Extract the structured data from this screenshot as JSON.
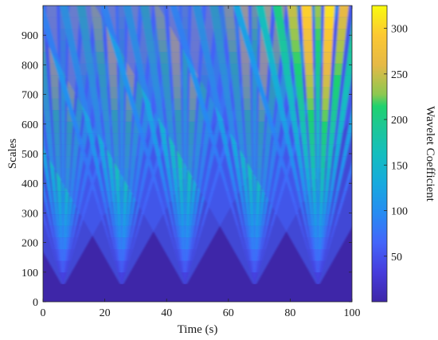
{
  "chart_data": {
    "type": "heatmap",
    "title": "",
    "xlabel": "Time (s)",
    "ylabel": "Scales",
    "colorbar_label": "Wavelet Coefficient",
    "xlim": [
      0,
      100
    ],
    "ylim": [
      0,
      1000
    ],
    "x_ticks": [
      0,
      20,
      40,
      60,
      80,
      100
    ],
    "y_ticks": [
      0,
      100,
      200,
      300,
      400,
      500,
      600,
      700,
      800,
      900
    ],
    "color_range": [
      0,
      325
    ],
    "colorbar_ticks": [
      50,
      100,
      150,
      200,
      250,
      300
    ],
    "colormap": "parula",
    "grid": false,
    "peak_times": [
      6.5,
      25.5,
      46,
      68.5,
      89
    ],
    "peak_coefficient_max": 325,
    "background_coefficient": 25
  }
}
